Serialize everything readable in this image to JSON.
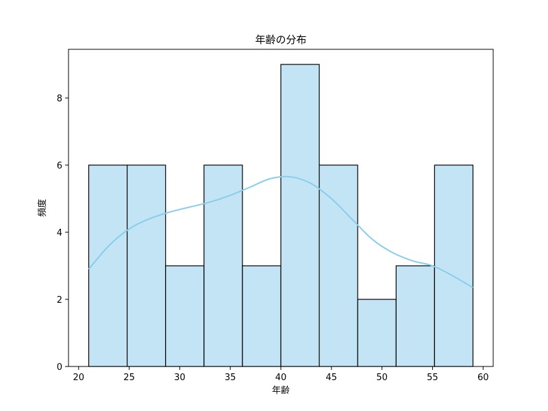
{
  "chart_data": {
    "type": "bar",
    "title": "年齢の分布",
    "xlabel": "年齢",
    "ylabel": "頻度",
    "xlim": [
      19,
      61
    ],
    "ylim": [
      0,
      9.45
    ],
    "xticks": [
      20,
      25,
      30,
      35,
      40,
      45,
      50,
      55,
      60
    ],
    "yticks": [
      0,
      2,
      4,
      6,
      8
    ],
    "grid": false,
    "bins": [
      {
        "start": 21.0,
        "end": 24.8,
        "count": 6
      },
      {
        "start": 24.8,
        "end": 28.6,
        "count": 6
      },
      {
        "start": 28.6,
        "end": 32.4,
        "count": 3
      },
      {
        "start": 32.4,
        "end": 36.2,
        "count": 6
      },
      {
        "start": 36.2,
        "end": 40.0,
        "count": 3
      },
      {
        "start": 40.0,
        "end": 43.8,
        "count": 9
      },
      {
        "start": 43.8,
        "end": 47.6,
        "count": 6
      },
      {
        "start": 47.6,
        "end": 51.4,
        "count": 2
      },
      {
        "start": 51.4,
        "end": 55.2,
        "count": 3
      },
      {
        "start": 55.2,
        "end": 59.0,
        "count": 6
      }
    ],
    "kde": {
      "x": [
        21,
        23,
        25,
        27,
        29,
        31,
        33,
        35,
        37,
        39,
        41,
        43,
        45,
        47,
        49,
        51,
        53,
        55,
        57,
        59
      ],
      "y": [
        2.9,
        3.6,
        4.1,
        4.4,
        4.6,
        4.75,
        4.9,
        5.1,
        5.35,
        5.6,
        5.65,
        5.45,
        5.0,
        4.4,
        3.8,
        3.4,
        3.15,
        3.0,
        2.7,
        2.35
      ]
    },
    "colors": {
      "bar_fill": "#c3e4f4",
      "bar_edge": "#000000",
      "kde_line": "#87ceeb"
    }
  }
}
